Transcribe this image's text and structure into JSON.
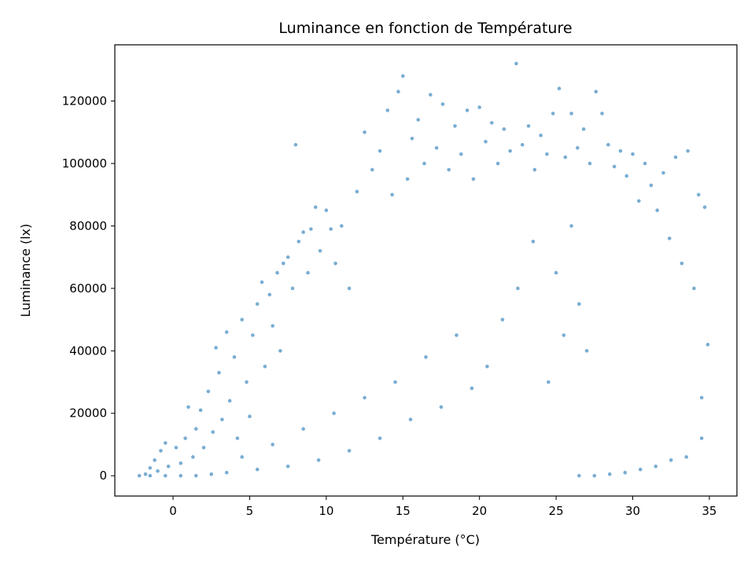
{
  "chart_data": {
    "type": "scatter",
    "title": "Luminance en fonction de Température",
    "xlabel": "Température (°C)",
    "ylabel": "Luminance (lx)",
    "xlim": [
      -3.8,
      36.8
    ],
    "ylim": [
      -6500,
      138000
    ],
    "xticks": [
      0,
      5,
      10,
      15,
      20,
      25,
      30,
      35
    ],
    "yticks": [
      0,
      20000,
      40000,
      60000,
      80000,
      100000,
      120000
    ],
    "grid": false,
    "color": "#1f77b4",
    "series": [
      {
        "points": [
          [
            -2.2,
            0
          ],
          [
            -1.8,
            500
          ],
          [
            -1.5,
            2500
          ],
          [
            -1.2,
            5000
          ],
          [
            -1.0,
            1500
          ],
          [
            -0.8,
            8000
          ],
          [
            -0.5,
            10500
          ],
          [
            -0.3,
            3000
          ],
          [
            0.2,
            9000
          ],
          [
            0.5,
            4000
          ],
          [
            0.8,
            12000
          ],
          [
            1.0,
            22000
          ],
          [
            1.3,
            6000
          ],
          [
            1.5,
            15000
          ],
          [
            1.8,
            21000
          ],
          [
            2.0,
            9000
          ],
          [
            2.3,
            27000
          ],
          [
            2.6,
            14000
          ],
          [
            2.8,
            41000
          ],
          [
            3.0,
            33000
          ],
          [
            3.2,
            18000
          ],
          [
            3.5,
            46000
          ],
          [
            3.7,
            24000
          ],
          [
            4.0,
            38000
          ],
          [
            4.2,
            12000
          ],
          [
            4.5,
            50000
          ],
          [
            4.8,
            30000
          ],
          [
            5.0,
            19000
          ],
          [
            5.2,
            45000
          ],
          [
            5.5,
            55000
          ],
          [
            5.8,
            62000
          ],
          [
            6.0,
            35000
          ],
          [
            6.3,
            58000
          ],
          [
            6.5,
            48000
          ],
          [
            6.8,
            65000
          ],
          [
            7.0,
            40000
          ],
          [
            7.2,
            68000
          ],
          [
            7.5,
            70000
          ],
          [
            7.8,
            60000
          ],
          [
            8.0,
            106000
          ],
          [
            8.2,
            75000
          ],
          [
            8.5,
            78000
          ],
          [
            8.8,
            65000
          ],
          [
            9.0,
            79000
          ],
          [
            9.3,
            86000
          ],
          [
            9.6,
            72000
          ],
          [
            10.0,
            85000
          ],
          [
            10.3,
            79000
          ],
          [
            10.6,
            68000
          ],
          [
            11.0,
            80000
          ],
          [
            11.5,
            60000
          ],
          [
            12.0,
            91000
          ],
          [
            12.5,
            110000
          ],
          [
            13.0,
            98000
          ],
          [
            13.5,
            104000
          ],
          [
            14.0,
            117000
          ],
          [
            14.3,
            90000
          ],
          [
            14.7,
            123000
          ],
          [
            15.0,
            128000
          ],
          [
            15.3,
            95000
          ],
          [
            15.6,
            108000
          ],
          [
            16.0,
            114000
          ],
          [
            16.4,
            100000
          ],
          [
            16.8,
            122000
          ],
          [
            17.2,
            105000
          ],
          [
            17.6,
            119000
          ],
          [
            18.0,
            98000
          ],
          [
            18.4,
            112000
          ],
          [
            18.8,
            103000
          ],
          [
            19.2,
            117000
          ],
          [
            19.6,
            95000
          ],
          [
            20.0,
            118000
          ],
          [
            20.4,
            107000
          ],
          [
            20.8,
            113000
          ],
          [
            21.2,
            100000
          ],
          [
            21.6,
            111000
          ],
          [
            22.0,
            104000
          ],
          [
            22.4,
            132000
          ],
          [
            22.8,
            106000
          ],
          [
            23.2,
            112000
          ],
          [
            23.6,
            98000
          ],
          [
            24.0,
            109000
          ],
          [
            24.4,
            103000
          ],
          [
            24.8,
            116000
          ],
          [
            25.2,
            124000
          ],
          [
            25.6,
            102000
          ],
          [
            26.0,
            116000
          ],
          [
            26.4,
            105000
          ],
          [
            26.8,
            111000
          ],
          [
            27.2,
            100000
          ],
          [
            27.6,
            123000
          ],
          [
            28.0,
            116000
          ],
          [
            28.4,
            106000
          ],
          [
            28.8,
            99000
          ],
          [
            29.2,
            104000
          ],
          [
            29.6,
            96000
          ],
          [
            30.0,
            103000
          ],
          [
            30.4,
            88000
          ],
          [
            30.8,
            100000
          ],
          [
            31.2,
            93000
          ],
          [
            31.6,
            85000
          ],
          [
            32.0,
            97000
          ],
          [
            32.4,
            76000
          ],
          [
            32.8,
            102000
          ],
          [
            33.2,
            68000
          ],
          [
            33.6,
            104000
          ],
          [
            34.0,
            60000
          ],
          [
            34.3,
            90000
          ],
          [
            34.5,
            25000
          ],
          [
            34.7,
            86000
          ],
          [
            34.9,
            42000
          ],
          [
            34.5,
            12000
          ],
          [
            33.5,
            6000
          ],
          [
            32.5,
            5000
          ],
          [
            31.5,
            3000
          ],
          [
            30.5,
            2000
          ],
          [
            29.5,
            1000
          ],
          [
            28.5,
            500
          ],
          [
            27.5,
            0
          ],
          [
            26.5,
            0
          ],
          [
            25.5,
            45000
          ],
          [
            25.0,
            65000
          ],
          [
            24.5,
            30000
          ],
          [
            26.0,
            80000
          ],
          [
            26.5,
            55000
          ],
          [
            27.0,
            40000
          ],
          [
            23.5,
            75000
          ],
          [
            22.5,
            60000
          ],
          [
            21.5,
            50000
          ],
          [
            20.5,
            35000
          ],
          [
            19.5,
            28000
          ],
          [
            18.5,
            45000
          ],
          [
            17.5,
            22000
          ],
          [
            16.5,
            38000
          ],
          [
            15.5,
            18000
          ],
          [
            14.5,
            30000
          ],
          [
            13.5,
            12000
          ],
          [
            12.5,
            25000
          ],
          [
            11.5,
            8000
          ],
          [
            10.5,
            20000
          ],
          [
            9.5,
            5000
          ],
          [
            8.5,
            15000
          ],
          [
            7.5,
            3000
          ],
          [
            6.5,
            10000
          ],
          [
            5.5,
            2000
          ],
          [
            4.5,
            6000
          ],
          [
            3.5,
            1000
          ],
          [
            2.5,
            500
          ],
          [
            1.5,
            0
          ],
          [
            0.5,
            0
          ],
          [
            -0.5,
            0
          ],
          [
            -1.5,
            0
          ]
        ]
      }
    ]
  }
}
